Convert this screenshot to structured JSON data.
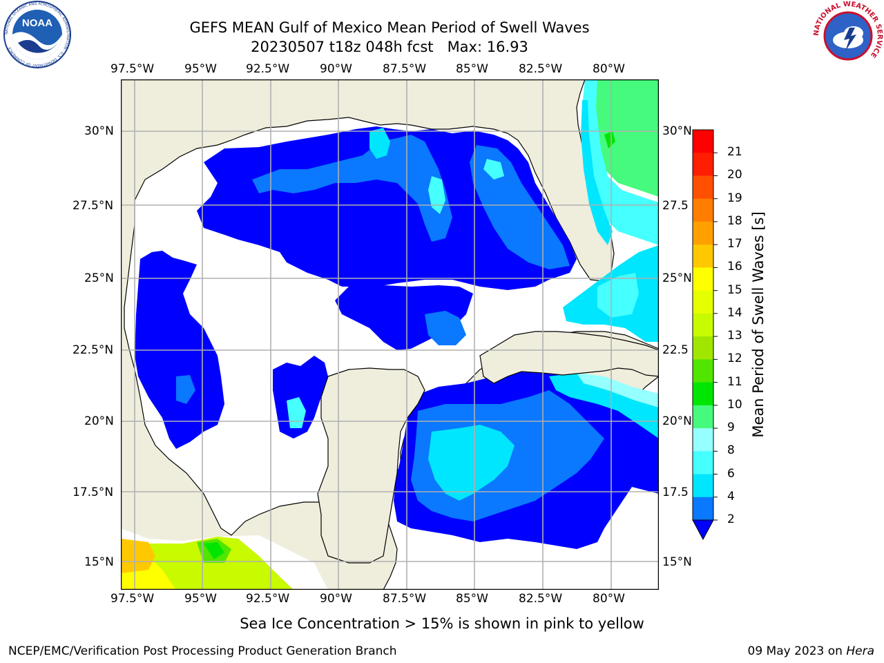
{
  "header": {
    "title_line1": "GEFS MEAN Gulf of Mexico Mean Period of Swell Waves",
    "title_line2": "20230507 t18z 048h fcst   Max: 16.93"
  },
  "logos": {
    "noaa_text": "NOAA",
    "noaa_ring": "NATIONAL OCEANIC AND ATMOSPHERIC ADMINISTRATION · U.S. DEPARTMENT OF COMMERCE",
    "nws_ring": "NATIONAL WEATHER SERVICE"
  },
  "map": {
    "lon_ticks": [
      "97.5°W",
      "95°W",
      "92.5°W",
      "90°W",
      "87.5°W",
      "85°W",
      "82.5°W",
      "80°W"
    ],
    "lat_ticks_left": [
      "30°N",
      "27.5°N",
      "25°N",
      "22.5°N",
      "20°N",
      "17.5°N",
      "15°N"
    ],
    "lat_ticks_right": [
      "30°N",
      "27.5",
      "25°N",
      "22.5",
      "20°N",
      "17.5",
      "15°N"
    ],
    "colors": {
      "land": "#efeddc",
      "ocean_missing": "#ffffff",
      "grid": "#b0b0b0",
      "coast": "#000000"
    }
  },
  "colorbar": {
    "label": "Mean Period of Swell Waves [s]",
    "ticks": [
      "2",
      "4",
      "6",
      "8",
      "9",
      "10",
      "11",
      "12",
      "13",
      "14",
      "15",
      "16",
      "17",
      "18",
      "19",
      "20",
      "21"
    ],
    "colors": [
      "#0000ff",
      "#0a78ff",
      "#00e6ff",
      "#46ffff",
      "#96ffff",
      "#46fa7d",
      "#00e600",
      "#50e600",
      "#a0e600",
      "#c8fa00",
      "#e6ff00",
      "#ffff00",
      "#ffc800",
      "#ffa000",
      "#ff7d00",
      "#ff5000",
      "#ff1e00",
      "#ff0000"
    ]
  },
  "note": "Sea Ice Concentration > 15% is shown in pink to yellow",
  "footer": {
    "left": "NCEP/EMC/Verification Post Processing Product Generation Branch",
    "right_date": "09 May 2023 on ",
    "right_host": "Hera"
  }
}
